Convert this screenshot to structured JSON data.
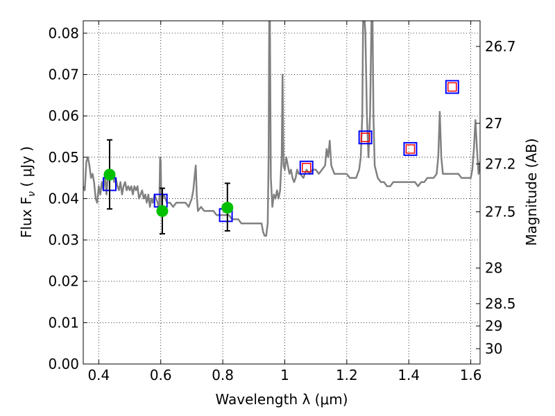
{
  "chart_data": {
    "type": "scatter",
    "xlabel": "Wavelength  λ (μm)",
    "ylabel": "Flux  F",
    "ylabel_sub": "ν",
    "ylabel_unit": " ( μJy )",
    "y2label": "Magnitude (AB)",
    "xlim": [
      0.35,
      1.63
    ],
    "ylim": [
      0.0,
      0.083
    ],
    "grid": true,
    "x_ticks": [
      0.4,
      0.6,
      0.8,
      1.0,
      1.2,
      1.4,
      1.6
    ],
    "x_tick_labels": [
      "0.4",
      "0.6",
      "0.8",
      "1",
      "1.2",
      "1.4",
      "1.6"
    ],
    "y_ticks": [
      0.0,
      0.01,
      0.02,
      0.03,
      0.04,
      0.05,
      0.06,
      0.07,
      0.08
    ],
    "y_tick_labels": [
      "0.00",
      "0.01",
      "0.02",
      "0.03",
      "0.04",
      "0.05",
      "0.06",
      "0.07",
      "0.08"
    ],
    "mag_ticks": [
      {
        "label": "26.7",
        "flux": 0.0768
      },
      {
        "label": "27",
        "flux": 0.0582
      },
      {
        "label": "27.2",
        "flux": 0.0484
      },
      {
        "label": "27.5",
        "flux": 0.0368
      },
      {
        "label": "28",
        "flux": 0.0232
      },
      {
        "label": "28.5",
        "flux": 0.0146
      },
      {
        "label": "29",
        "flux": 0.0092
      },
      {
        "label": "30",
        "flux": 0.0037
      }
    ],
    "series": [
      {
        "kind": "line",
        "color": "#808080",
        "x": [
          0.35,
          0.355,
          0.36,
          0.365,
          0.37,
          0.375,
          0.38,
          0.385,
          0.39,
          0.395,
          0.4,
          0.405,
          0.41,
          0.415,
          0.42,
          0.425,
          0.43,
          0.435,
          0.44,
          0.445,
          0.45,
          0.455,
          0.46,
          0.465,
          0.47,
          0.475,
          0.48,
          0.485,
          0.49,
          0.495,
          0.5,
          0.505,
          0.51,
          0.515,
          0.52,
          0.525,
          0.53,
          0.535,
          0.54,
          0.545,
          0.55,
          0.555,
          0.56,
          0.565,
          0.57,
          0.575,
          0.58,
          0.585,
          0.59,
          0.595,
          0.598,
          0.6,
          0.602,
          0.605,
          0.61,
          0.62,
          0.63,
          0.64,
          0.65,
          0.66,
          0.67,
          0.68,
          0.69,
          0.7,
          0.705,
          0.71,
          0.713,
          0.716,
          0.72,
          0.73,
          0.74,
          0.75,
          0.76,
          0.77,
          0.78,
          0.79,
          0.8,
          0.81,
          0.82,
          0.83,
          0.84,
          0.85,
          0.86,
          0.87,
          0.88,
          0.89,
          0.9,
          0.91,
          0.92,
          0.925,
          0.93,
          0.935,
          0.94,
          0.945,
          0.948,
          0.95,
          0.952,
          0.955,
          0.96,
          0.965,
          0.97,
          0.975,
          0.98,
          0.985,
          0.99,
          0.993,
          0.996,
          1.0,
          1.005,
          1.01,
          1.015,
          1.02,
          1.025,
          1.03,
          1.035,
          1.04,
          1.045,
          1.05,
          1.06,
          1.07,
          1.08,
          1.09,
          1.1,
          1.11,
          1.12,
          1.13,
          1.135,
          1.14,
          1.145,
          1.15,
          1.16,
          1.17,
          1.18,
          1.19,
          1.2,
          1.21,
          1.22,
          1.23,
          1.24,
          1.245,
          1.25,
          1.253,
          1.256,
          1.26,
          1.265,
          1.27,
          1.275,
          1.28,
          1.283,
          1.286,
          1.29,
          1.3,
          1.31,
          1.32,
          1.33,
          1.34,
          1.35,
          1.36,
          1.37,
          1.38,
          1.39,
          1.4,
          1.41,
          1.42,
          1.43,
          1.44,
          1.45,
          1.46,
          1.47,
          1.48,
          1.49,
          1.495,
          1.5,
          1.505,
          1.51,
          1.52,
          1.53,
          1.54,
          1.55,
          1.56,
          1.57,
          1.58,
          1.59,
          1.6,
          1.605,
          1.61,
          1.615,
          1.62,
          1.625,
          1.63
        ],
        "y": [
          0.043,
          0.042,
          0.049,
          0.05,
          0.048,
          0.045,
          0.046,
          0.044,
          0.04,
          0.039,
          0.043,
          0.041,
          0.044,
          0.042,
          0.046,
          0.041,
          0.046,
          0.047,
          0.045,
          0.046,
          0.044,
          0.045,
          0.043,
          0.042,
          0.044,
          0.041,
          0.043,
          0.044,
          0.042,
          0.043,
          0.042,
          0.043,
          0.041,
          0.043,
          0.042,
          0.043,
          0.04,
          0.041,
          0.042,
          0.04,
          0.041,
          0.039,
          0.041,
          0.038,
          0.04,
          0.039,
          0.041,
          0.04,
          0.039,
          0.037,
          0.05,
          0.049,
          0.038,
          0.04,
          0.041,
          0.039,
          0.039,
          0.038,
          0.039,
          0.039,
          0.039,
          0.039,
          0.038,
          0.04,
          0.042,
          0.046,
          0.048,
          0.041,
          0.037,
          0.038,
          0.037,
          0.037,
          0.037,
          0.037,
          0.036,
          0.036,
          0.036,
          0.036,
          0.036,
          0.035,
          0.035,
          0.035,
          0.034,
          0.034,
          0.034,
          0.034,
          0.034,
          0.034,
          0.034,
          0.034,
          0.032,
          0.031,
          0.031,
          0.034,
          0.05,
          0.085,
          0.085,
          0.045,
          0.038,
          0.041,
          0.04,
          0.042,
          0.04,
          0.042,
          0.05,
          0.07,
          0.048,
          0.047,
          0.05,
          0.048,
          0.046,
          0.047,
          0.045,
          0.044,
          0.045,
          0.047,
          0.046,
          0.046,
          0.045,
          0.047,
          0.046,
          0.047,
          0.047,
          0.046,
          0.047,
          0.048,
          0.052,
          0.05,
          0.054,
          0.048,
          0.046,
          0.046,
          0.046,
          0.046,
          0.046,
          0.045,
          0.045,
          0.045,
          0.047,
          0.05,
          0.06,
          0.085,
          0.085,
          0.08,
          0.06,
          0.05,
          0.06,
          0.085,
          0.085,
          0.06,
          0.048,
          0.045,
          0.044,
          0.044,
          0.043,
          0.043,
          0.044,
          0.044,
          0.044,
          0.044,
          0.044,
          0.044,
          0.044,
          0.044,
          0.043,
          0.044,
          0.044,
          0.045,
          0.045,
          0.045,
          0.046,
          0.05,
          0.061,
          0.05,
          0.046,
          0.046,
          0.046,
          0.046,
          0.046,
          0.046,
          0.045,
          0.045,
          0.045,
          0.045,
          0.047,
          0.052,
          0.059,
          0.052,
          0.046,
          0.049
        ]
      },
      {
        "kind": "open-square-blue",
        "color": "#0000ff",
        "x": [
          0.435,
          0.6,
          0.81,
          1.07,
          1.26,
          1.405,
          1.54
        ],
        "y": [
          0.0435,
          0.0395,
          0.036,
          0.0475,
          0.0548,
          0.052,
          0.067
        ]
      },
      {
        "kind": "open-square-red",
        "color": "#ff0000",
        "x": [
          1.07,
          1.26,
          1.405,
          1.54
        ],
        "y": [
          0.0475,
          0.0548,
          0.052,
          0.067
        ]
      },
      {
        "kind": "filled-circle-errorbar",
        "color": "#00c000",
        "x": [
          0.435,
          0.605,
          0.815
        ],
        "y": [
          0.0458,
          0.037,
          0.0378
        ],
        "y_low": [
          0.0375,
          0.0315,
          0.0322
        ],
        "y_high": [
          0.0542,
          0.0425,
          0.0437
        ]
      }
    ]
  }
}
